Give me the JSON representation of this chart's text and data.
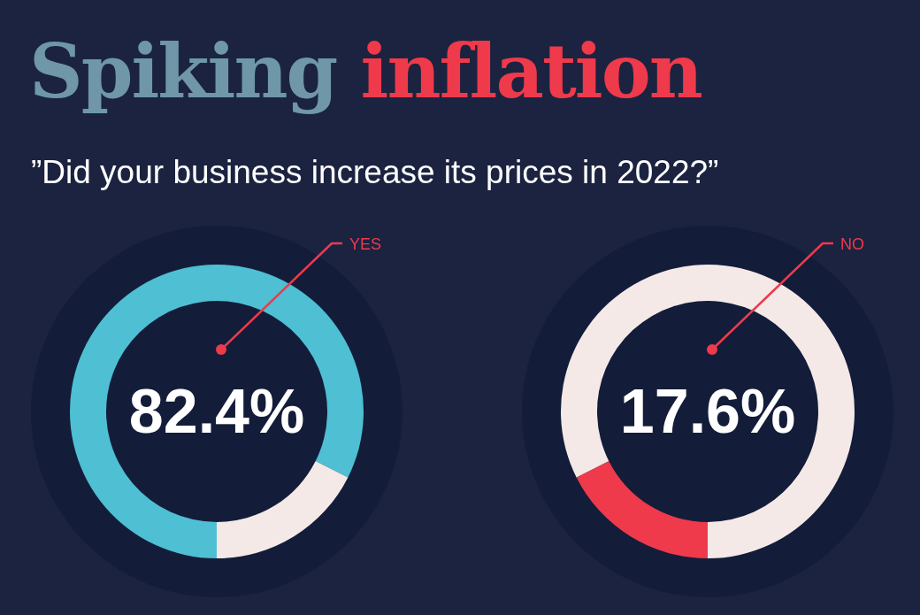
{
  "chart_data": [
    {
      "type": "donut",
      "title": "Spiking inflation",
      "subtitle": "”Did your business increase its prices in 2022?”",
      "categories": [
        null,
        null
      ],
      "values": [
        82.4,
        17.6
      ],
      "colors": [
        "#4fbfd3",
        "#f5e9e8"
      ],
      "annotations": [
        "YES",
        "82.4%"
      ]
    },
    {
      "type": "donut",
      "categories": [
        null,
        null
      ],
      "values": [
        17.6,
        82.4
      ],
      "colors": [
        "#ee3a4b",
        "#f5e9e8"
      ],
      "annotations": [
        "NO",
        "17.6%"
      ]
    }
  ]
}
